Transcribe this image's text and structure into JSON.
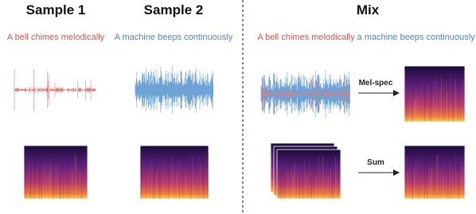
{
  "columns": [
    {
      "title": "Sample 1",
      "caption": "A bell chimes melodically"
    },
    {
      "title": "Sample 2",
      "caption": "A machine beeps continuously"
    },
    {
      "title": "Mix",
      "caption_parts": [
        "A bell chimes melodically",
        "a machine beeps continuously"
      ]
    }
  ],
  "arrows": [
    {
      "label": "Mel-spec"
    },
    {
      "label": "Sum"
    }
  ]
}
